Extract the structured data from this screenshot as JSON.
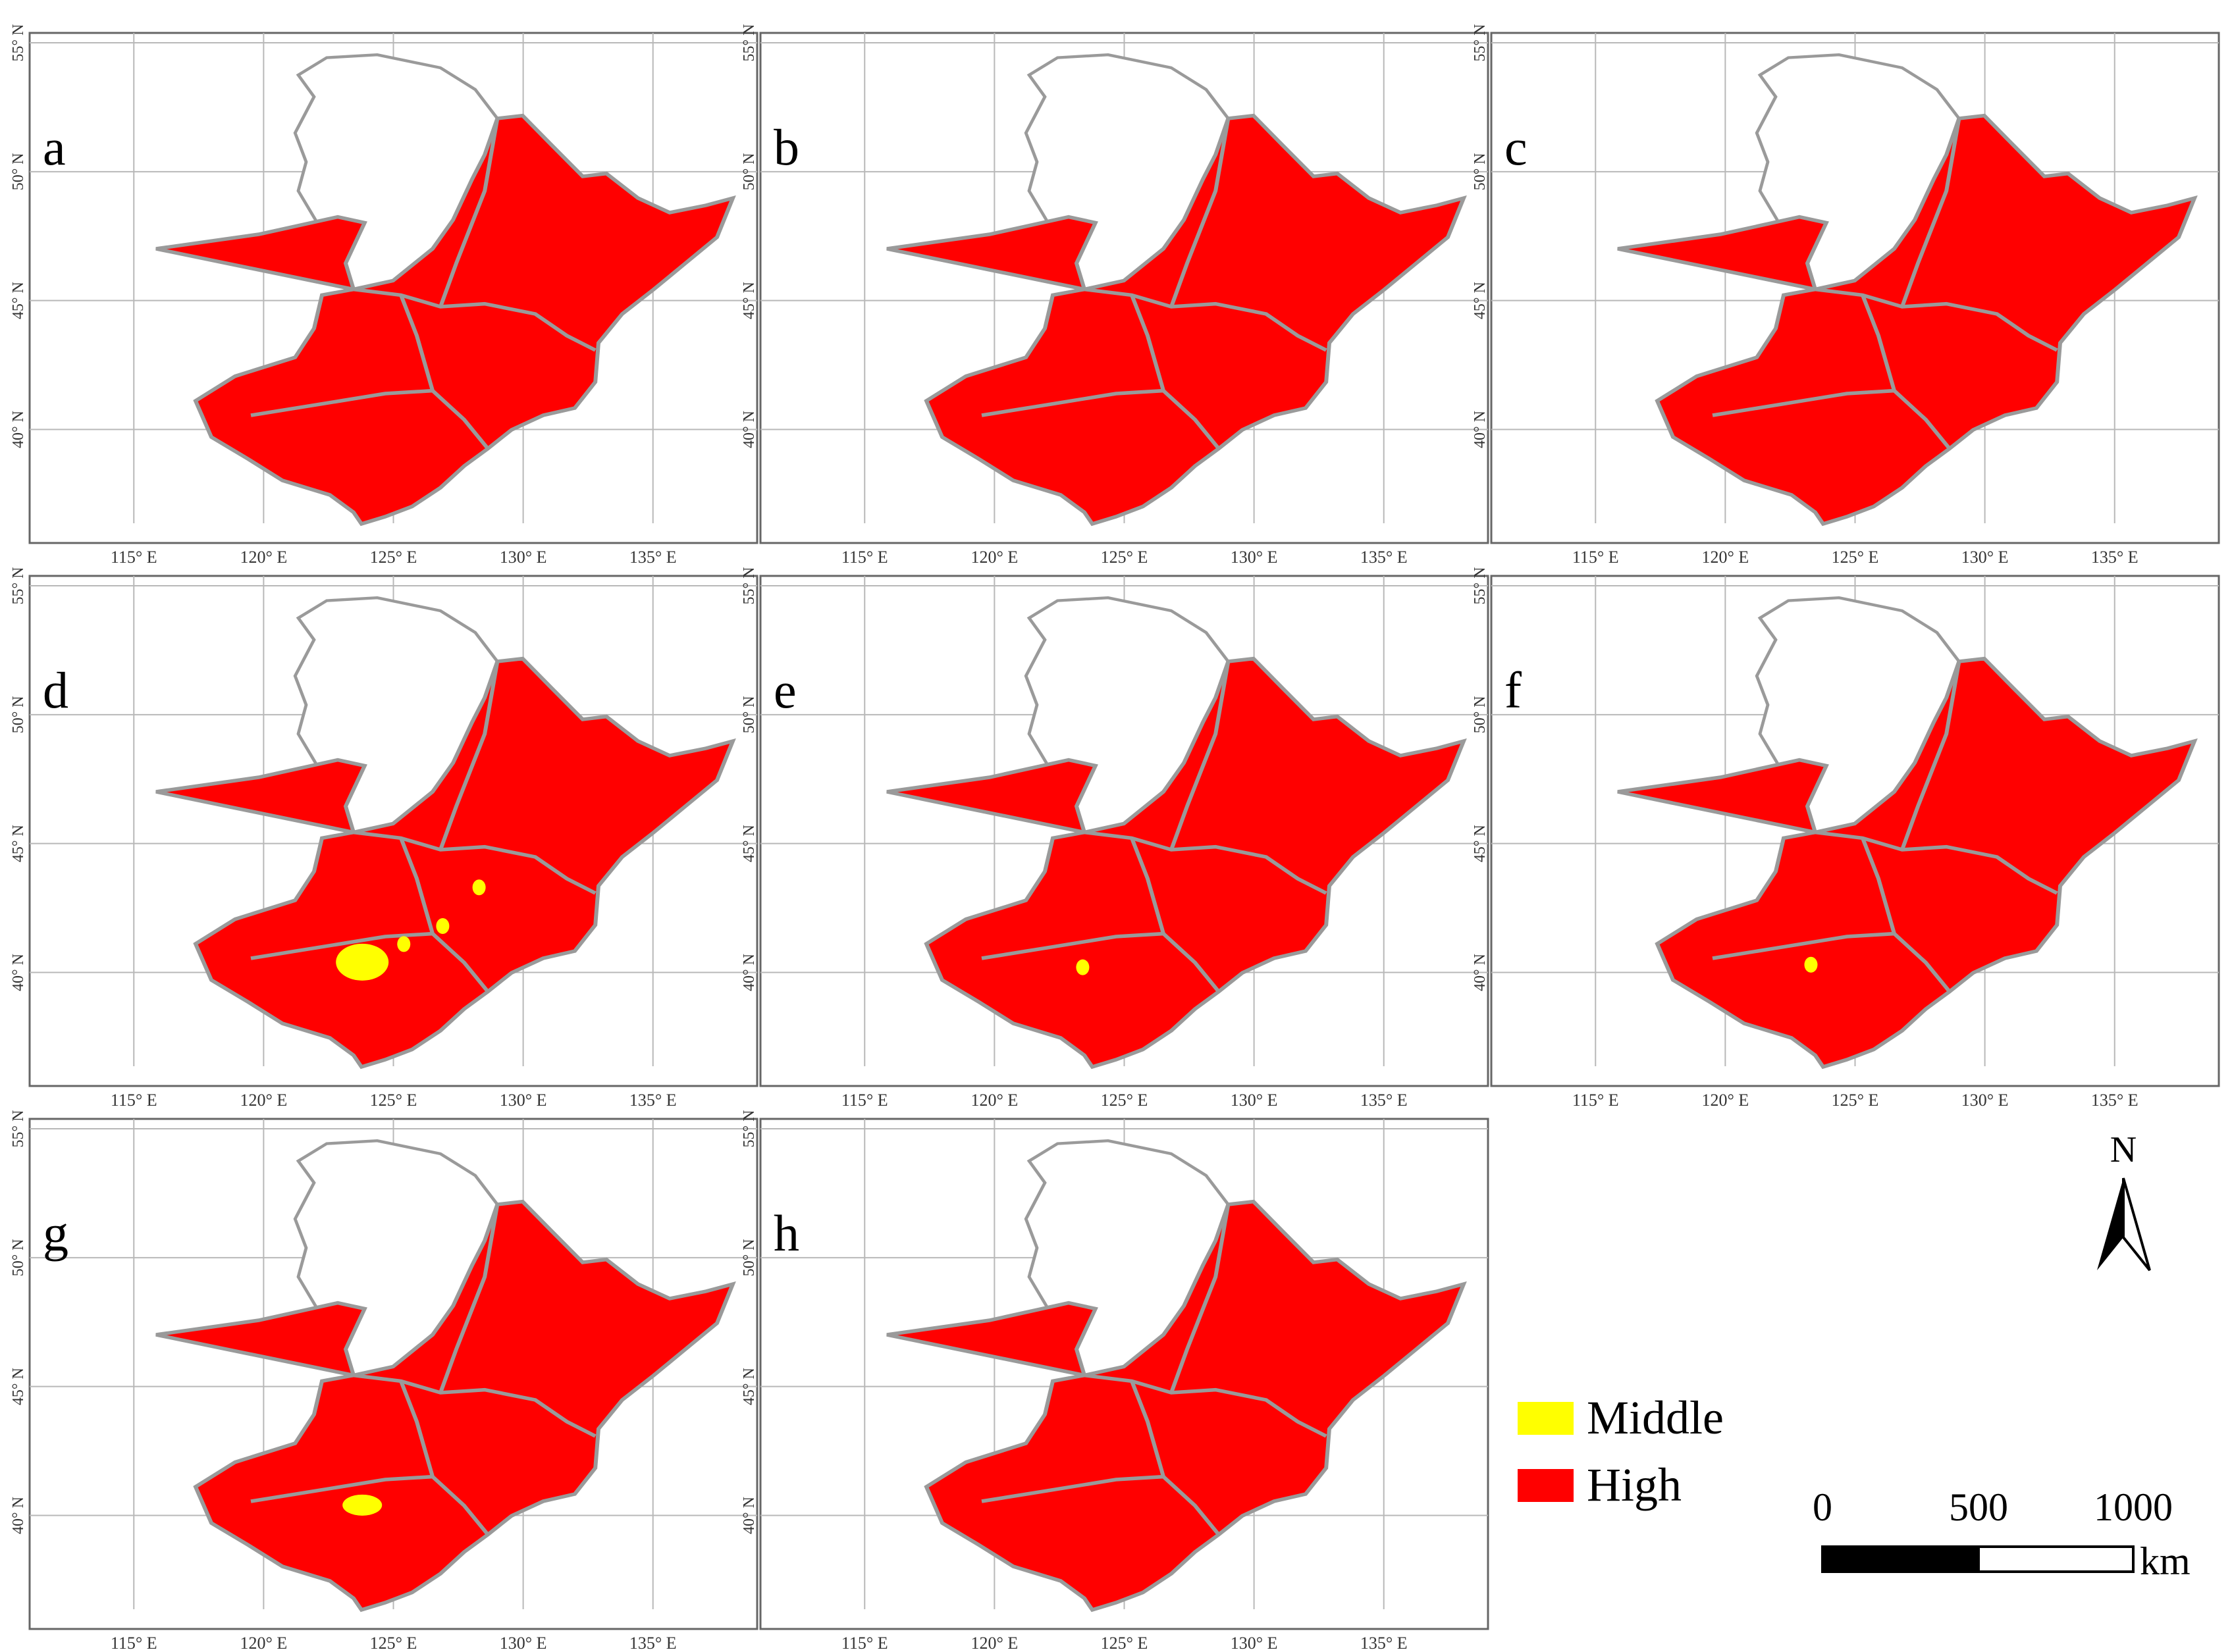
{
  "map": {
    "longitude_labels": [
      "115° E",
      "120° E",
      "125° E",
      "130° E",
      "135° E"
    ],
    "latitude_labels": [
      "55° N",
      "50° N",
      "45° N",
      "40° N"
    ],
    "panels": [
      {
        "letter": "a",
        "middle_patches": []
      },
      {
        "letter": "b",
        "middle_patches": []
      },
      {
        "letter": "c",
        "middle_patches": []
      },
      {
        "letter": "d",
        "middle_patches": [
          {
            "lon": 123.8,
            "lat": 40.4,
            "size": "large"
          },
          {
            "lon": 125.4,
            "lat": 41.1,
            "size": "small"
          },
          {
            "lon": 126.9,
            "lat": 41.8,
            "size": "small"
          },
          {
            "lon": 128.3,
            "lat": 43.3,
            "size": "small"
          }
        ]
      },
      {
        "letter": "e",
        "middle_patches": [
          {
            "lon": 123.4,
            "lat": 40.2,
            "size": "small"
          }
        ]
      },
      {
        "letter": "f",
        "middle_patches": [
          {
            "lon": 123.3,
            "lat": 40.3,
            "size": "small"
          }
        ]
      },
      {
        "letter": "g",
        "middle_patches": [
          {
            "lon": 123.8,
            "lat": 40.4,
            "size": "medium"
          }
        ]
      },
      {
        "letter": "h",
        "middle_patches": []
      }
    ],
    "colors": {
      "high": "#ff0000",
      "middle": "#ffff00",
      "boundary": "#9a9a9a",
      "non_region": "#ffffff",
      "grid": "#b8b8b8"
    }
  },
  "legend": {
    "items": [
      {
        "label": "Middle",
        "color": "#ffff00"
      },
      {
        "label": "High",
        "color": "#ff0000"
      }
    ]
  },
  "north_arrow": {
    "label": "N"
  },
  "scale_bar": {
    "ticks": [
      "0",
      "500",
      "1000"
    ],
    "unit": "km"
  }
}
